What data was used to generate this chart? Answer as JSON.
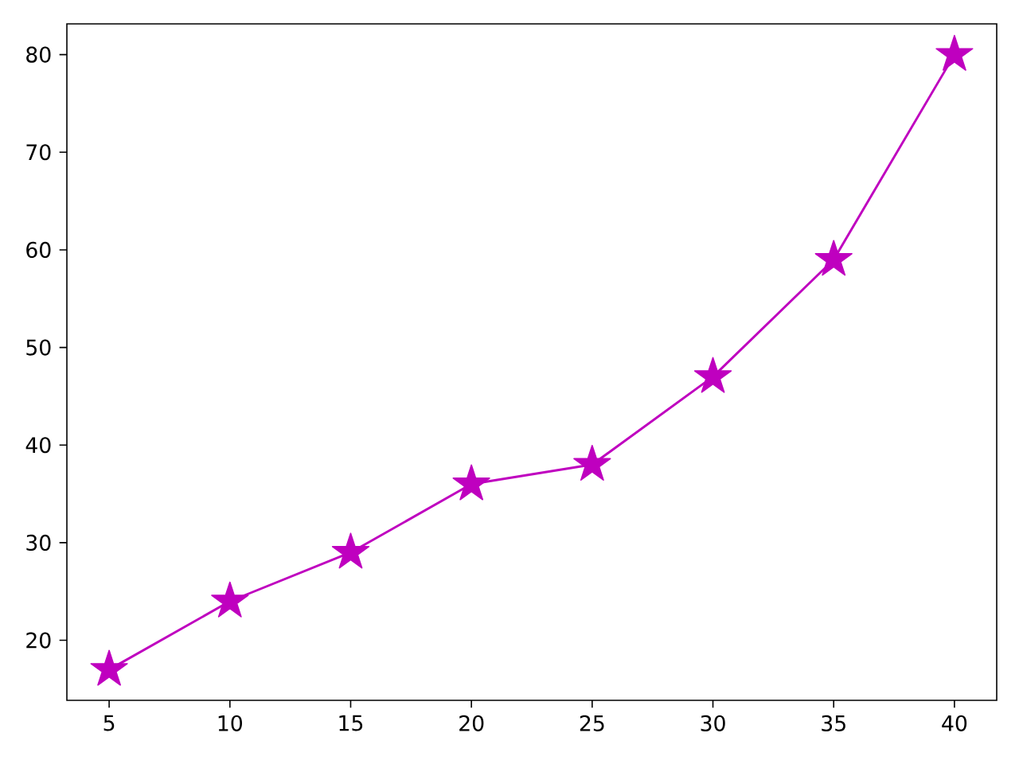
{
  "chart_data": {
    "type": "line",
    "x": [
      5,
      10,
      15,
      20,
      25,
      30,
      35,
      40
    ],
    "series": [
      {
        "color": "#bf00bf",
        "values": [
          17,
          24,
          29,
          36,
          38,
          47,
          59,
          80
        ]
      }
    ],
    "xlim": [
      3.25,
      41.75
    ],
    "ylim": [
      13.85,
      83.15
    ],
    "xticks": [
      5,
      10,
      15,
      20,
      25,
      30,
      35,
      40
    ],
    "yticks": [
      20,
      30,
      40,
      50,
      60,
      70,
      80
    ],
    "marker": "star",
    "line_style": "solid"
  }
}
